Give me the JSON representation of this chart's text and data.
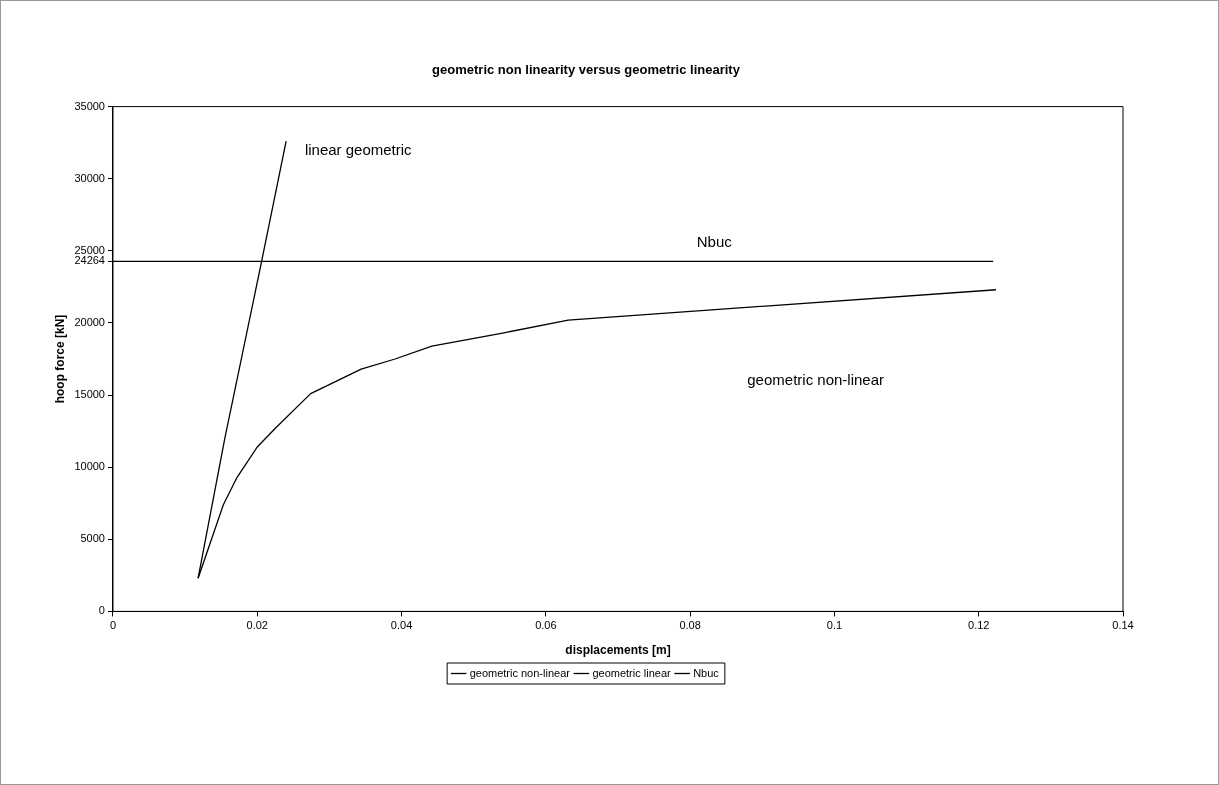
{
  "chart_data": {
    "type": "line",
    "title": "geometric non linearity versus geometric linearity",
    "xlabel": "displacements [m]",
    "ylabel": "hoop force [kN]",
    "xlim": [
      0,
      0.14
    ],
    "xticks": [
      0,
      0.02,
      0.04,
      0.06,
      0.08,
      0.1,
      0.12,
      0.14
    ],
    "ylim": [
      0,
      35000
    ],
    "yticks": [
      0,
      5000,
      10000,
      15000,
      20000,
      24264,
      25000,
      30000,
      35000
    ],
    "series": [
      {
        "name": "geometric non-linear",
        "color": "#000000",
        "x": [
          0.0118,
          0.0153,
          0.0172,
          0.02,
          0.0225,
          0.0274,
          0.0344,
          0.0391,
          0.0442,
          0.054,
          0.0631,
          0.1224
        ],
        "values": [
          2300,
          7400,
          9300,
          11400,
          12700,
          15100,
          16800,
          17500,
          18400,
          19300,
          20200,
          22300
        ]
      },
      {
        "name": "geometric linear",
        "color": "#000000",
        "x": [
          0.0118,
          0.0155,
          0.0206,
          0.024
        ],
        "values": [
          2300,
          12000,
          24264,
          32600
        ]
      },
      {
        "name": "Nbuc",
        "color": "#000000",
        "x": [
          0,
          0.122
        ],
        "values": [
          24264,
          24264
        ]
      }
    ],
    "annotations": [
      "linear geometric",
      "Nbuc",
      "geometric non-linear"
    ],
    "legend": "bottom",
    "grid": false,
    "marker": "none",
    "line_style": "solid"
  }
}
